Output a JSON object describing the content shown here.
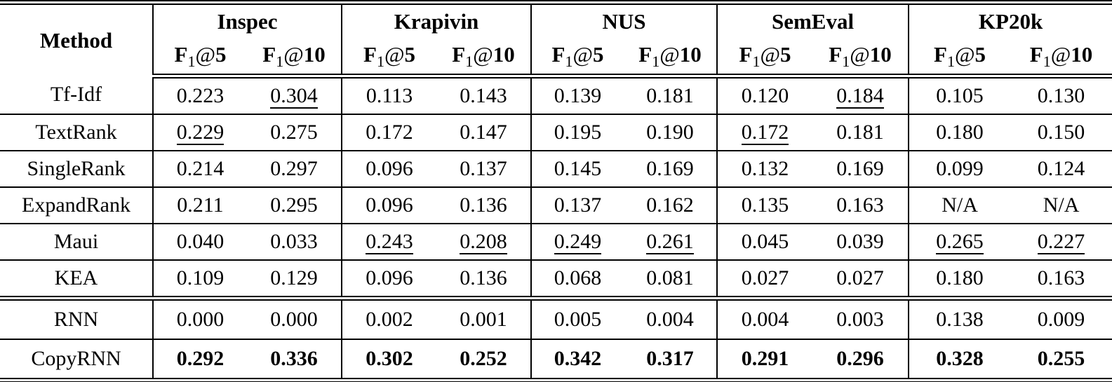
{
  "table": {
    "method_header": "Method",
    "groups": [
      {
        "name": "Inspec"
      },
      {
        "name": "Krapivin"
      },
      {
        "name": "NUS"
      },
      {
        "name": "SemEval"
      },
      {
        "name": "KP20k"
      }
    ],
    "metric_headers": [
      "F1@5",
      "F1@10"
    ],
    "rows": [
      {
        "method": "Tf-Idf",
        "values": [
          {
            "v": "0.223"
          },
          {
            "v": "0.304",
            "u": true
          },
          {
            "v": "0.113"
          },
          {
            "v": "0.143"
          },
          {
            "v": "0.139"
          },
          {
            "v": "0.181"
          },
          {
            "v": "0.120"
          },
          {
            "v": "0.184",
            "u": true
          },
          {
            "v": "0.105"
          },
          {
            "v": "0.130"
          }
        ]
      },
      {
        "method": "TextRank",
        "values": [
          {
            "v": "0.229",
            "u": true
          },
          {
            "v": "0.275"
          },
          {
            "v": "0.172"
          },
          {
            "v": "0.147"
          },
          {
            "v": "0.195"
          },
          {
            "v": "0.190"
          },
          {
            "v": "0.172",
            "u": true
          },
          {
            "v": "0.181"
          },
          {
            "v": "0.180"
          },
          {
            "v": "0.150"
          }
        ]
      },
      {
        "method": "SingleRank",
        "values": [
          {
            "v": "0.214"
          },
          {
            "v": "0.297"
          },
          {
            "v": "0.096"
          },
          {
            "v": "0.137"
          },
          {
            "v": "0.145"
          },
          {
            "v": "0.169"
          },
          {
            "v": "0.132"
          },
          {
            "v": "0.169"
          },
          {
            "v": "0.099"
          },
          {
            "v": "0.124"
          }
        ]
      },
      {
        "method": "ExpandRank",
        "values": [
          {
            "v": "0.211"
          },
          {
            "v": "0.295"
          },
          {
            "v": "0.096"
          },
          {
            "v": "0.136"
          },
          {
            "v": "0.137"
          },
          {
            "v": "0.162"
          },
          {
            "v": "0.135"
          },
          {
            "v": "0.163"
          },
          {
            "v": "N/A"
          },
          {
            "v": "N/A"
          }
        ]
      },
      {
        "method": "Maui",
        "values": [
          {
            "v": "0.040"
          },
          {
            "v": "0.033"
          },
          {
            "v": "0.243",
            "u": true
          },
          {
            "v": "0.208",
            "u": true
          },
          {
            "v": "0.249",
            "u": true
          },
          {
            "v": "0.261",
            "u": true
          },
          {
            "v": "0.045"
          },
          {
            "v": "0.039"
          },
          {
            "v": "0.265",
            "u": true
          },
          {
            "v": "0.227",
            "u": true
          }
        ]
      },
      {
        "method": "KEA",
        "values": [
          {
            "v": "0.109"
          },
          {
            "v": "0.129"
          },
          {
            "v": "0.096"
          },
          {
            "v": "0.136"
          },
          {
            "v": "0.068"
          },
          {
            "v": "0.081"
          },
          {
            "v": "0.027"
          },
          {
            "v": "0.027"
          },
          {
            "v": "0.180"
          },
          {
            "v": "0.163"
          }
        ]
      },
      {
        "method": "RNN",
        "section_break": true,
        "tall": true,
        "values": [
          {
            "v": "0.000"
          },
          {
            "v": "0.000"
          },
          {
            "v": "0.002"
          },
          {
            "v": "0.001"
          },
          {
            "v": "0.005"
          },
          {
            "v": "0.004"
          },
          {
            "v": "0.004"
          },
          {
            "v": "0.003"
          },
          {
            "v": "0.138"
          },
          {
            "v": "0.009"
          }
        ]
      },
      {
        "method": "CopyRNN",
        "tall": true,
        "values": [
          {
            "v": "0.292",
            "b": true
          },
          {
            "v": "0.336",
            "b": true
          },
          {
            "v": "0.302",
            "b": true
          },
          {
            "v": "0.252",
            "b": true
          },
          {
            "v": "0.342",
            "b": true
          },
          {
            "v": "0.317",
            "b": true
          },
          {
            "v": "0.291",
            "b": true
          },
          {
            "v": "0.296",
            "b": true
          },
          {
            "v": "0.328",
            "b": true
          },
          {
            "v": "0.255",
            "b": true
          }
        ]
      }
    ]
  },
  "colors": {
    "text": "#000000",
    "background": "#ffffff",
    "rules": "#000000"
  }
}
